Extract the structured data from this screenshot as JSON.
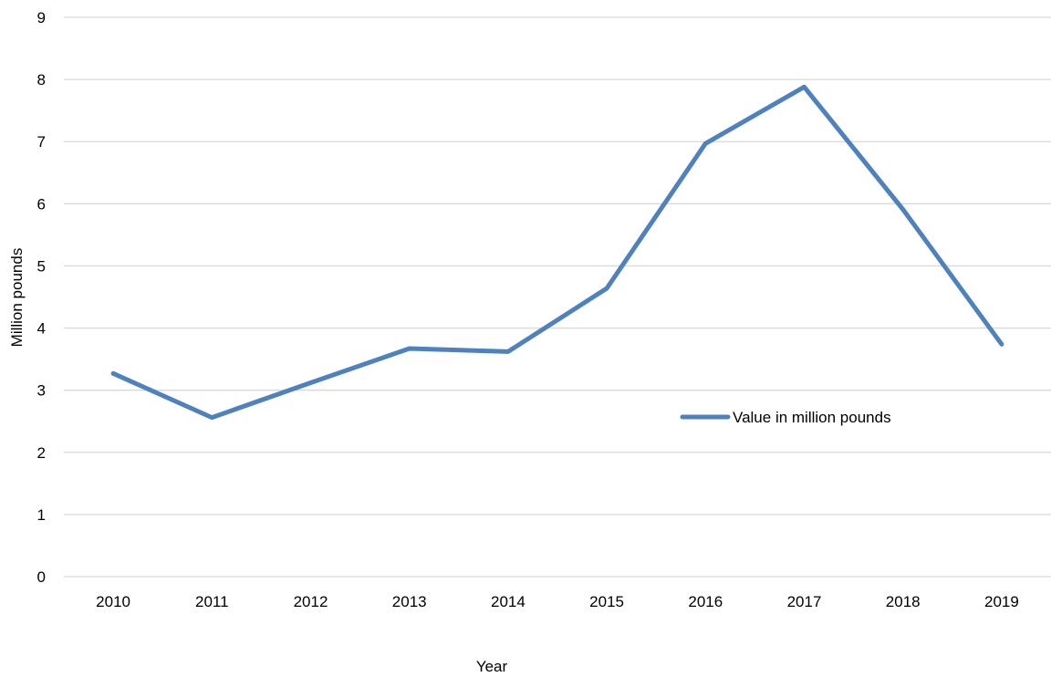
{
  "chart_data": {
    "type": "line",
    "title": "",
    "xlabel": "Year",
    "ylabel": "Million pounds",
    "categories": [
      "2010",
      "2011",
      "2012",
      "2013",
      "2014",
      "2015",
      "2016",
      "2017",
      "2018",
      "2019"
    ],
    "series": [
      {
        "name": "Value in million pounds",
        "color": "#4f81bd",
        "values": [
          3.27,
          2.56,
          3.12,
          3.67,
          3.62,
          4.64,
          6.97,
          7.88,
          5.91,
          3.74
        ]
      }
    ],
    "ylim": [
      0,
      9
    ],
    "yticks": [
      0,
      1,
      2,
      3,
      4,
      5,
      6,
      7,
      8,
      9
    ],
    "grid": true,
    "legend_position": "inside-right"
  }
}
